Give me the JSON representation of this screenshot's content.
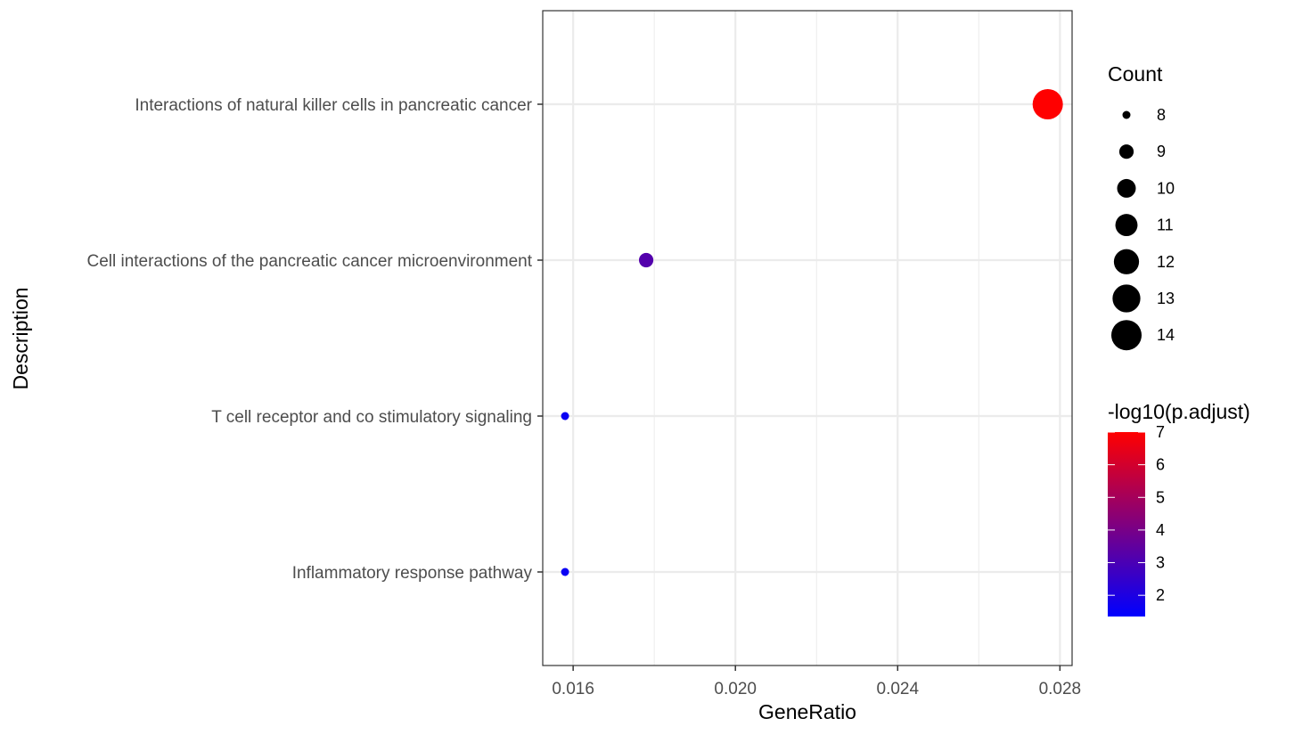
{
  "chart_data": {
    "type": "scatter",
    "xlabel": "GeneRatio",
    "ylabel": "Description",
    "xlim": [
      0.01525,
      0.0283
    ],
    "x_ticks": [
      0.016,
      0.02,
      0.024,
      0.028
    ],
    "x_tick_labels": [
      "0.016",
      "0.020",
      "0.024",
      "0.028"
    ],
    "grid": true,
    "legend_position": "right",
    "categories": [
      "Interactions of natural killer cells in pancreatic cancer",
      "Cell interactions of the pancreatic cancer microenvironment",
      "T cell receptor and co stimulatory signaling",
      "Inflammatory response pathway"
    ],
    "points": [
      {
        "category": "Interactions of natural killer cells in pancreatic cancer",
        "x": 0.0277,
        "count": 14,
        "neglog10_padj": 7.0
      },
      {
        "category": "Cell interactions of the pancreatic cancer microenvironment",
        "x": 0.0178,
        "count": 9,
        "neglog10_padj": 3.2
      },
      {
        "category": "T cell receptor and co stimulatory signaling",
        "x": 0.0158,
        "count": 8,
        "neglog10_padj": 1.6
      },
      {
        "category": "Inflammatory response pathway",
        "x": 0.0158,
        "count": 8,
        "neglog10_padj": 1.6
      }
    ],
    "size_legend": {
      "title": "Count",
      "values": [
        8,
        9,
        10,
        11,
        12,
        13,
        14
      ],
      "labels": [
        "8",
        "9",
        "10",
        "11",
        "12",
        "13",
        "14"
      ]
    },
    "color_legend": {
      "title": "-log10(p.adjust)",
      "range": [
        1.35,
        7.0
      ],
      "ticks": [
        2,
        3,
        4,
        5,
        6,
        7
      ],
      "labels": [
        "2",
        "3",
        "4",
        "5",
        "6",
        "7"
      ],
      "low_color": "#0000ff",
      "high_color": "#ff0000"
    }
  }
}
